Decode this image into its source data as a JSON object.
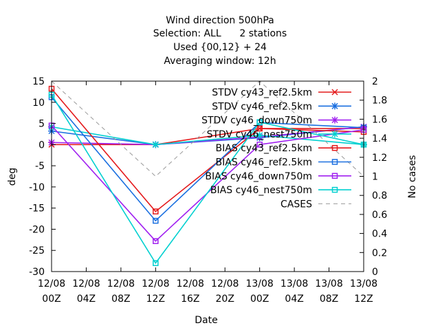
{
  "chart_data": {
    "type": "line",
    "title_lines": [
      "Wind direction 500hPa",
      "Selection: ALL      2 stations",
      "Used {00,12} + 24",
      "Averaging window: 12h"
    ],
    "xlabel": "Date",
    "ylabel": "deg",
    "y2label": "No cases",
    "x_ticks": [
      {
        "line1": "12/08",
        "line2": "00Z"
      },
      {
        "line1": "12/08",
        "line2": "04Z"
      },
      {
        "line1": "12/08",
        "line2": "08Z"
      },
      {
        "line1": "12/08",
        "line2": "12Z"
      },
      {
        "line1": "12/08",
        "line2": "16Z"
      },
      {
        "line1": "12/08",
        "line2": "20Z"
      },
      {
        "line1": "13/08",
        "line2": "00Z"
      },
      {
        "line1": "13/08",
        "line2": "04Z"
      },
      {
        "line1": "13/08",
        "line2": "08Z"
      },
      {
        "line1": "13/08",
        "line2": "12Z"
      }
    ],
    "xlim_hours": [
      0,
      36
    ],
    "ylim": [
      -30,
      15
    ],
    "y_ticks": [
      15,
      10,
      5,
      0,
      -5,
      -10,
      -15,
      -20,
      -25,
      -30
    ],
    "y2lim": [
      0,
      2
    ],
    "y2_ticks": [
      "2",
      "1.8",
      "1.6",
      "1.4",
      "1.2",
      "1",
      "0.8",
      "0.6",
      "0.4",
      "0.2",
      "0"
    ],
    "grid": false,
    "legend_position": "top-right",
    "series": [
      {
        "name": "STDV cy43_ref2.5km",
        "color": "#e41a1c",
        "marker": "x",
        "dash": "",
        "axis": "y",
        "x_hours": [
          0,
          12,
          24,
          36
        ],
        "values": [
          0.0,
          0.0,
          3.8,
          3.8
        ]
      },
      {
        "name": "STDV cy46_ref2.5km",
        "color": "#1a6fe0",
        "marker": "star",
        "dash": "",
        "axis": "y",
        "x_hours": [
          0,
          12,
          24,
          36
        ],
        "values": [
          3.2,
          0.0,
          1.6,
          4.2
        ]
      },
      {
        "name": "STDV cy46_down750m",
        "color": "#a020f0",
        "marker": "star",
        "dash": "",
        "axis": "y",
        "x_hours": [
          0,
          12,
          24,
          36
        ],
        "values": [
          0.5,
          0.0,
          1.8,
          4.2
        ]
      },
      {
        "name": "STDV cy46_nest750m",
        "color": "#00d0d0",
        "marker": "star",
        "dash": "",
        "axis": "y",
        "x_hours": [
          0,
          12,
          24,
          36
        ],
        "values": [
          4.2,
          0.0,
          2.2,
          0.0
        ]
      },
      {
        "name": "BIAS cy43_ref2.5km",
        "color": "#e41a1c",
        "marker": "square",
        "dash": "",
        "axis": "y",
        "x_hours": [
          0,
          12,
          24,
          36
        ],
        "values": [
          13.2,
          -15.8,
          3.8,
          3.0
        ]
      },
      {
        "name": "BIAS cy46_ref2.5km",
        "color": "#1a6fe0",
        "marker": "square",
        "dash": "",
        "axis": "y",
        "x_hours": [
          0,
          12,
          24,
          36
        ],
        "values": [
          11.2,
          -18.0,
          5.2,
          4.0
        ]
      },
      {
        "name": "BIAS cy46_down750m",
        "color": "#a020f0",
        "marker": "square",
        "dash": "",
        "axis": "y",
        "x_hours": [
          0,
          12,
          24,
          36
        ],
        "values": [
          4.5,
          -22.8,
          0.0,
          3.5
        ]
      },
      {
        "name": "BIAS cy46_nest750m",
        "color": "#00d0d0",
        "marker": "square",
        "dash": "",
        "axis": "y",
        "x_hours": [
          0,
          12,
          24,
          36
        ],
        "values": [
          11.8,
          -28.0,
          5.3,
          0.0
        ]
      },
      {
        "name": "CASES",
        "color": "#999999",
        "marker": "none",
        "dash": "6,5",
        "axis": "y2",
        "x_hours": [
          0,
          12,
          24,
          36
        ],
        "values": [
          2.0,
          1.0,
          2.0,
          1.0
        ]
      }
    ]
  }
}
